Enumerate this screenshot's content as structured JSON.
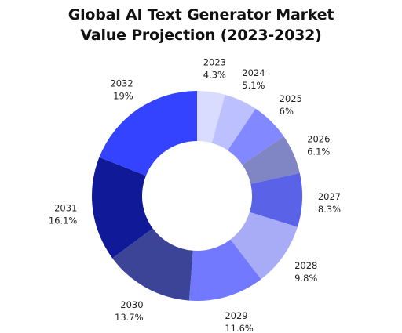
{
  "chart_data": {
    "type": "pie",
    "title_lines": [
      "Global AI Text Generator Market",
      "Value Projection (2023-2032)"
    ],
    "categories": [
      "2023",
      "2024",
      "2025",
      "2026",
      "2027",
      "2028",
      "2029",
      "2030",
      "2031",
      "2032"
    ],
    "values": [
      4.3,
      5.1,
      6,
      6.1,
      8.3,
      9.8,
      11.6,
      13.7,
      16.1,
      19
    ],
    "value_labels": [
      "4.3%",
      "5.1%",
      "6%",
      "6.1%",
      "8.3%",
      "9.8%",
      "11.6%",
      "13.7%",
      "16.1%",
      "19%"
    ],
    "colors": [
      "#d9dcff",
      "#bcc0ff",
      "#8288ff",
      "#8085c4",
      "#5a62e8",
      "#a8acf7",
      "#7279ff",
      "#3c4497",
      "#101a99",
      "#3343ff"
    ],
    "donut": true,
    "legend": "none"
  }
}
